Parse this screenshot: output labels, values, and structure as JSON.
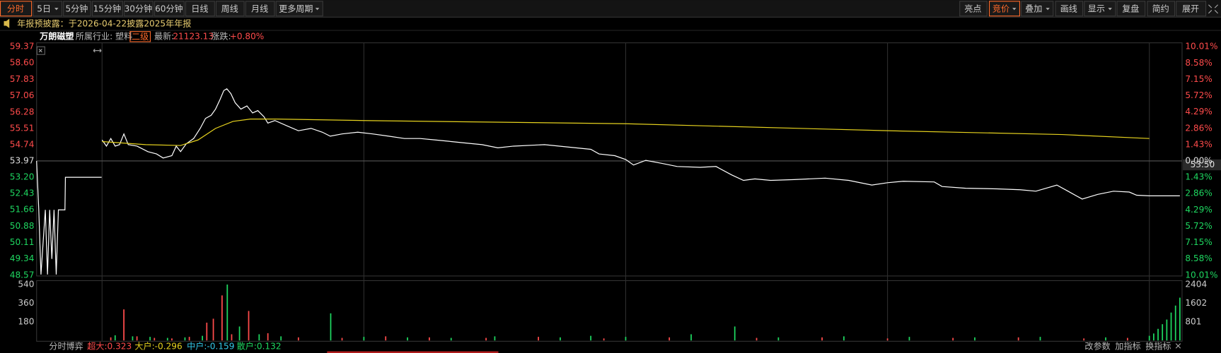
{
  "toolbar": {
    "left": [
      "分时",
      "5日",
      "5分钟",
      "15分钟",
      "30分钟",
      "60分钟",
      "日线",
      "周线",
      "月线",
      "更多周期"
    ],
    "right": [
      "亮点",
      "竞价",
      "叠加",
      "画线",
      "显示",
      "复盘",
      "简约",
      "展开"
    ]
  },
  "notice": "年报预披露：于2026-04-22披露2025年年报",
  "header": {
    "name": "万朗磁塑",
    "industry": "所属行业: 塑料",
    "level": "二级",
    "latest_label": "最新:",
    "latest": "21123.13",
    "change_label": "涨跌:",
    "change": "+0.80%"
  },
  "price_tag": "53.50",
  "chart_data": [
    {
      "type": "line",
      "xlim": [
        -15,
        247.5
      ],
      "xticks": [
        0,
        60,
        120,
        180,
        240
      ],
      "ylim": [
        48.57,
        59.37
      ],
      "yticks": [
        59.37,
        {
          "value": 58.6,
          "label": "58.60"
        },
        57.83,
        57.06,
        56.28,
        55.51,
        54.74,
        53.97,
        {
          "value": 53.2,
          "label": "53.20"
        },
        52.43,
        51.66,
        50.88,
        50.11,
        49.34,
        48.57
      ],
      "y2lim": [
        -10.01,
        10.01
      ],
      "y2ticks": [
        {
          "value": 10.01,
          "label": "10.01%"
        },
        {
          "value": 8.58,
          "label": "8.58%"
        },
        {
          "value": 7.15,
          "label": "7.15%"
        },
        {
          "value": 5.72,
          "label": "5.72%"
        },
        {
          "value": 4.29,
          "label": "4.29%"
        },
        {
          "value": 2.86,
          "label": "2.86%"
        },
        {
          "value": 1.43,
          "label": "1.43%"
        },
        {
          "value": 0,
          "label": "0.00%"
        },
        {
          "value": -1.43,
          "label": "1.43%"
        },
        {
          "value": -2.86,
          "label": "2.86%"
        },
        {
          "value": -4.29,
          "label": "4.29%"
        },
        {
          "value": -5.72,
          "label": "5.72%"
        },
        {
          "value": -7.15,
          "label": "7.15%"
        },
        {
          "value": -8.58,
          "label": "8.58%"
        },
        {
          "value": -10.01,
          "label": "10.01%"
        }
      ],
      "series": [
        {
          "color": "#ffffff",
          "x": [
            -15,
            -14.5,
            -14,
            -13,
            -12.5,
            -12,
            -11.5,
            -11,
            -10.5,
            -10,
            -8.5,
            -8.4,
            -0.1
          ],
          "values": [
            53.97,
            51.66,
            48.6,
            51.66,
            48.6,
            51.66,
            49.34,
            51.66,
            48.6,
            51.66,
            51.66,
            53.2,
            53.2
          ]
        },
        {
          "color": "#ffffff",
          "x": [
            0,
            1,
            2,
            3,
            4,
            5,
            6,
            8,
            10.5,
            12.5,
            14,
            16,
            17,
            18,
            19.3,
            21,
            22.5,
            23.7,
            25,
            26,
            27,
            27.9,
            28.6,
            29.5,
            30.5,
            31.8,
            33.2,
            34.5,
            35.7,
            37.1,
            38,
            39.6,
            42.5,
            45,
            47.9,
            50.5,
            52.3,
            55,
            58.6,
            62,
            65.7,
            69.3,
            72.9,
            76.4,
            80,
            83.6,
            87.1,
            90.7,
            94.3,
            101.4,
            108.6,
            112,
            113.9,
            117.5,
            120,
            121.8,
            124.6,
            128.2,
            131.8,
            137.1,
            140.7,
            144.3,
            147,
            149.6,
            153.2,
            158.6,
            165.7,
            171.1,
            176.4,
            180,
            183.6,
            190.7,
            192.5,
            197.9,
            205,
            210.4,
            214,
            218.8,
            221.1,
            224.6,
            228.2,
            231.8,
            235.4,
            237.1,
            240,
            247
          ],
          "values": [
            54.96,
            54.67,
            55.03,
            54.67,
            54.74,
            55.25,
            54.74,
            54.67,
            54.41,
            54.3,
            54.11,
            54.22,
            54.67,
            54.41,
            54.78,
            55.03,
            55.51,
            55.98,
            56.13,
            56.42,
            56.86,
            57.3,
            57.38,
            57.16,
            56.72,
            56.42,
            56.57,
            56.24,
            56.35,
            56.06,
            55.76,
            55.88,
            55.62,
            55.4,
            55.51,
            55.33,
            55.14,
            55.25,
            55.33,
            55.25,
            55.14,
            55.03,
            55.03,
            54.96,
            54.89,
            54.81,
            54.74,
            54.59,
            54.67,
            54.74,
            54.59,
            54.52,
            54.3,
            54.22,
            54.04,
            53.78,
            54.0,
            53.86,
            53.71,
            53.67,
            53.71,
            53.31,
            53.05,
            53.12,
            53.05,
            53.09,
            53.16,
            53.05,
            52.83,
            52.94,
            53.01,
            52.98,
            52.76,
            52.68,
            52.65,
            52.61,
            52.54,
            52.83,
            52.57,
            52.17,
            52.39,
            52.54,
            52.5,
            52.35,
            52.32,
            52.32
          ]
        },
        {
          "color": "#e6d21e",
          "x": [
            0,
            10,
            18,
            22,
            26,
            30,
            34,
            40,
            60,
            120,
            180,
            220,
            240
          ],
          "values": [
            54.89,
            54.74,
            54.7,
            54.96,
            55.51,
            55.84,
            55.95,
            55.95,
            55.88,
            55.73,
            55.4,
            55.22,
            55.03
          ]
        }
      ]
    },
    {
      "type": "bar",
      "xlim": [
        -15,
        247.5
      ],
      "ylim": [
        0,
        540
      ],
      "yticks": [
        540,
        360,
        180
      ],
      "y2lim": [
        0,
        2404
      ],
      "y2ticks": [
        2404,
        1602,
        801
      ],
      "series": [
        {
          "color": "#ff4b4b",
          "x": [
            2,
            5,
            8,
            12,
            16,
            20,
            24,
            25.5,
            27.5,
            29.7,
            33.6,
            38,
            45,
            55,
            65,
            75,
            88,
            100,
            115,
            130,
            150,
            165,
            180,
            195,
            210,
            225,
            235
          ],
          "values": [
            30,
            300,
            40,
            25,
            20,
            35,
            172,
            210,
            435,
            60,
            285,
            70,
            30,
            25,
            40,
            30,
            25,
            35,
            20,
            30,
            25,
            30,
            20,
            25,
            30,
            20,
            25
          ]
        },
        {
          "color": "#1ed760",
          "x": [
            3,
            7,
            11,
            15,
            19,
            23,
            28.7,
            31.5,
            36,
            41,
            52.4,
            60,
            70,
            80,
            90,
            105,
            112,
            120,
            135,
            145,
            155,
            170,
            185,
            200,
            215,
            230,
            240
          ],
          "values": [
            50,
            40,
            35,
            25,
            30,
            45,
            540,
            135,
            60,
            40,
            262,
            35,
            30,
            25,
            40,
            30,
            45,
            35,
            60,
            135,
            30,
            40,
            35,
            30,
            35,
            30,
            45
          ]
        },
        {
          "color": "#1ed760",
          "axis": "y2",
          "x": [
            241,
            242,
            243,
            244,
            245,
            246,
            247
          ],
          "values": [
            300,
            500,
            700,
            900,
            1200,
            1500,
            1840
          ]
        }
      ]
    }
  ],
  "footer": {
    "left": [
      "分时博弈",
      "超大:0.323",
      "大户:-0.296",
      "中户:-0.159",
      "散户:0.132"
    ],
    "right": [
      "改参数",
      "加指标",
      "换指标"
    ]
  }
}
